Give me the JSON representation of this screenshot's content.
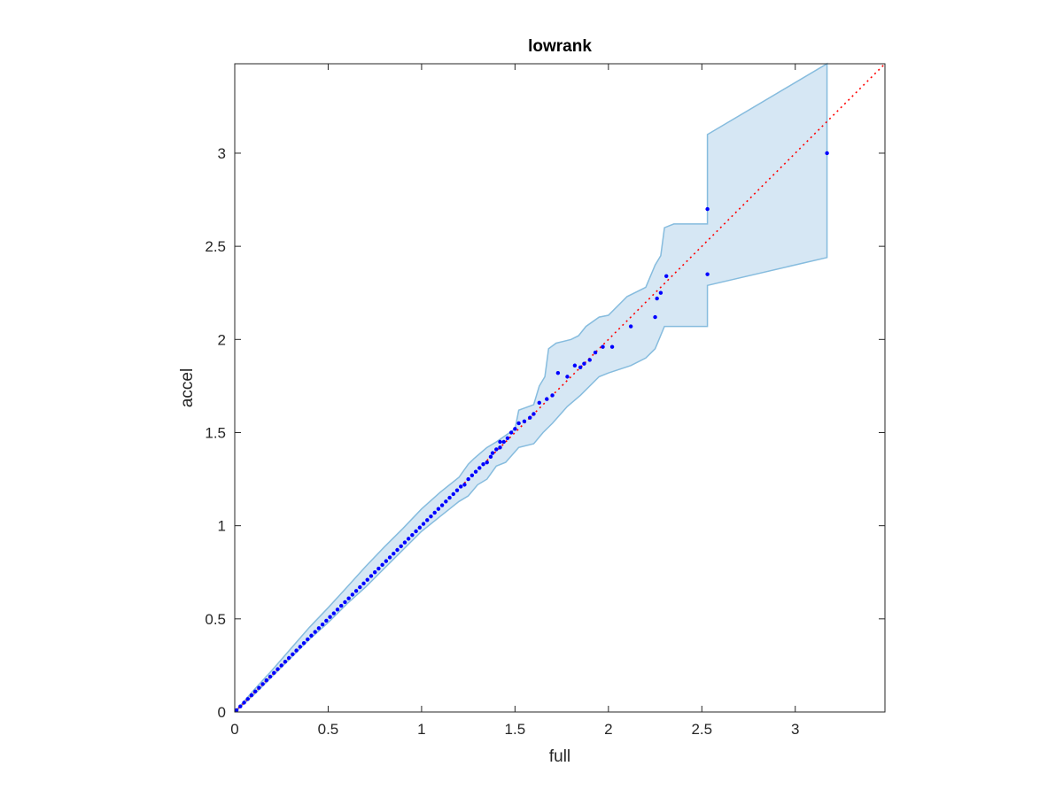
{
  "chart_data": {
    "type": "scatter",
    "title": "lowrank",
    "xlabel": "full",
    "ylabel": "accel",
    "xlim": [
      0,
      3.48
    ],
    "ylim": [
      0,
      3.48
    ],
    "xticks": [
      0,
      0.5,
      1,
      1.5,
      2,
      2.5,
      3
    ],
    "yticks": [
      0,
      0.5,
      1,
      1.5,
      2,
      2.5,
      3
    ],
    "xtick_labels": [
      "0",
      "0.5",
      "1",
      "1.5",
      "2",
      "2.5",
      "3"
    ],
    "ytick_labels": [
      "0",
      "0.5",
      "1",
      "1.5",
      "2",
      "2.5",
      "3"
    ],
    "grid": false,
    "reference_line": {
      "style": "dotted",
      "color": "#ff0000",
      "from": [
        0,
        0
      ],
      "to": [
        3.48,
        3.48
      ]
    },
    "band": {
      "fill": "#d6e7f4",
      "stroke": "#86bcde",
      "upper": [
        [
          0,
          0
        ],
        [
          0.1,
          0.115
        ],
        [
          0.2,
          0.225
        ],
        [
          0.3,
          0.34
        ],
        [
          0.4,
          0.455
        ],
        [
          0.5,
          0.56
        ],
        [
          0.6,
          0.67
        ],
        [
          0.7,
          0.78
        ],
        [
          0.8,
          0.885
        ],
        [
          0.9,
          0.985
        ],
        [
          1.0,
          1.09
        ],
        [
          1.1,
          1.18
        ],
        [
          1.2,
          1.26
        ],
        [
          1.25,
          1.33
        ],
        [
          1.28,
          1.36
        ],
        [
          1.35,
          1.42
        ],
        [
          1.4,
          1.45
        ],
        [
          1.5,
          1.52
        ],
        [
          1.52,
          1.62
        ],
        [
          1.6,
          1.65
        ],
        [
          1.63,
          1.75
        ],
        [
          1.66,
          1.8
        ],
        [
          1.68,
          1.95
        ],
        [
          1.72,
          1.98
        ],
        [
          1.8,
          2.0
        ],
        [
          1.84,
          2.02
        ],
        [
          1.88,
          2.07
        ],
        [
          1.95,
          2.12
        ],
        [
          2.0,
          2.13
        ],
        [
          2.1,
          2.23
        ],
        [
          2.2,
          2.28
        ],
        [
          2.25,
          2.4
        ],
        [
          2.28,
          2.45
        ],
        [
          2.3,
          2.6
        ],
        [
          2.35,
          2.62
        ],
        [
          2.53,
          2.62
        ],
        [
          2.53,
          3.1
        ],
        [
          3.17,
          3.48
        ],
        [
          3.17,
          3.48
        ]
      ],
      "lower": [
        [
          0,
          0
        ],
        [
          0.1,
          0.09
        ],
        [
          0.2,
          0.19
        ],
        [
          0.3,
          0.29
        ],
        [
          0.4,
          0.39
        ],
        [
          0.5,
          0.48
        ],
        [
          0.6,
          0.58
        ],
        [
          0.7,
          0.67
        ],
        [
          0.8,
          0.77
        ],
        [
          0.9,
          0.87
        ],
        [
          1.0,
          0.97
        ],
        [
          1.1,
          1.05
        ],
        [
          1.2,
          1.13
        ],
        [
          1.25,
          1.16
        ],
        [
          1.3,
          1.22
        ],
        [
          1.35,
          1.25
        ],
        [
          1.4,
          1.32
        ],
        [
          1.45,
          1.34
        ],
        [
          1.52,
          1.42
        ],
        [
          1.6,
          1.44
        ],
        [
          1.65,
          1.5
        ],
        [
          1.7,
          1.55
        ],
        [
          1.78,
          1.64
        ],
        [
          1.85,
          1.7
        ],
        [
          1.95,
          1.8
        ],
        [
          2.0,
          1.82
        ],
        [
          2.12,
          1.86
        ],
        [
          2.2,
          1.9
        ],
        [
          2.25,
          1.95
        ],
        [
          2.3,
          2.07
        ],
        [
          2.53,
          2.07
        ],
        [
          2.53,
          2.29
        ],
        [
          3.17,
          2.44
        ]
      ]
    },
    "points": [
      [
        0.01,
        0.01
      ],
      [
        0.03,
        0.03
      ],
      [
        0.05,
        0.05
      ],
      [
        0.07,
        0.07
      ],
      [
        0.09,
        0.09
      ],
      [
        0.11,
        0.11
      ],
      [
        0.13,
        0.13
      ],
      [
        0.15,
        0.15
      ],
      [
        0.17,
        0.17
      ],
      [
        0.19,
        0.19
      ],
      [
        0.21,
        0.21
      ],
      [
        0.23,
        0.23
      ],
      [
        0.25,
        0.25
      ],
      [
        0.27,
        0.27
      ],
      [
        0.29,
        0.29
      ],
      [
        0.31,
        0.31
      ],
      [
        0.33,
        0.33
      ],
      [
        0.35,
        0.35
      ],
      [
        0.37,
        0.37
      ],
      [
        0.39,
        0.39
      ],
      [
        0.41,
        0.41
      ],
      [
        0.43,
        0.43
      ],
      [
        0.45,
        0.45
      ],
      [
        0.47,
        0.47
      ],
      [
        0.49,
        0.49
      ],
      [
        0.51,
        0.51
      ],
      [
        0.53,
        0.53
      ],
      [
        0.55,
        0.55
      ],
      [
        0.57,
        0.57
      ],
      [
        0.59,
        0.59
      ],
      [
        0.61,
        0.61
      ],
      [
        0.63,
        0.63
      ],
      [
        0.65,
        0.65
      ],
      [
        0.67,
        0.67
      ],
      [
        0.69,
        0.69
      ],
      [
        0.71,
        0.71
      ],
      [
        0.73,
        0.73
      ],
      [
        0.75,
        0.75
      ],
      [
        0.77,
        0.77
      ],
      [
        0.79,
        0.79
      ],
      [
        0.81,
        0.81
      ],
      [
        0.83,
        0.83
      ],
      [
        0.85,
        0.85
      ],
      [
        0.87,
        0.87
      ],
      [
        0.89,
        0.89
      ],
      [
        0.91,
        0.91
      ],
      [
        0.93,
        0.93
      ],
      [
        0.95,
        0.95
      ],
      [
        0.97,
        0.97
      ],
      [
        0.99,
        0.99
      ],
      [
        1.01,
        1.01
      ],
      [
        1.03,
        1.03
      ],
      [
        1.05,
        1.05
      ],
      [
        1.07,
        1.07
      ],
      [
        1.09,
        1.09
      ],
      [
        1.11,
        1.11
      ],
      [
        1.13,
        1.13
      ],
      [
        1.15,
        1.15
      ],
      [
        1.17,
        1.17
      ],
      [
        1.19,
        1.19
      ],
      [
        1.21,
        1.21
      ],
      [
        1.23,
        1.22
      ],
      [
        1.25,
        1.25
      ],
      [
        1.27,
        1.27
      ],
      [
        1.29,
        1.29
      ],
      [
        1.31,
        1.31
      ],
      [
        1.33,
        1.33
      ],
      [
        1.35,
        1.34
      ],
      [
        1.37,
        1.37
      ],
      [
        1.38,
        1.39
      ],
      [
        1.4,
        1.41
      ],
      [
        1.42,
        1.42
      ],
      [
        1.42,
        1.45
      ],
      [
        1.44,
        1.45
      ],
      [
        1.46,
        1.47
      ],
      [
        1.48,
        1.5
      ],
      [
        1.5,
        1.52
      ],
      [
        1.52,
        1.55
      ],
      [
        1.55,
        1.56
      ],
      [
        1.58,
        1.58
      ],
      [
        1.6,
        1.6
      ],
      [
        1.63,
        1.66
      ],
      [
        1.67,
        1.68
      ],
      [
        1.7,
        1.7
      ],
      [
        1.73,
        1.82
      ],
      [
        1.78,
        1.8
      ],
      [
        1.82,
        1.86
      ],
      [
        1.85,
        1.85
      ],
      [
        1.87,
        1.87
      ],
      [
        1.9,
        1.89
      ],
      [
        1.93,
        1.93
      ],
      [
        1.97,
        1.96
      ],
      [
        2.02,
        1.96
      ],
      [
        2.12,
        2.07
      ],
      [
        2.25,
        2.12
      ],
      [
        2.26,
        2.22
      ],
      [
        2.28,
        2.25
      ],
      [
        2.31,
        2.34
      ],
      [
        2.53,
        2.7
      ],
      [
        2.53,
        2.35
      ],
      [
        3.17,
        3.0
      ]
    ]
  }
}
